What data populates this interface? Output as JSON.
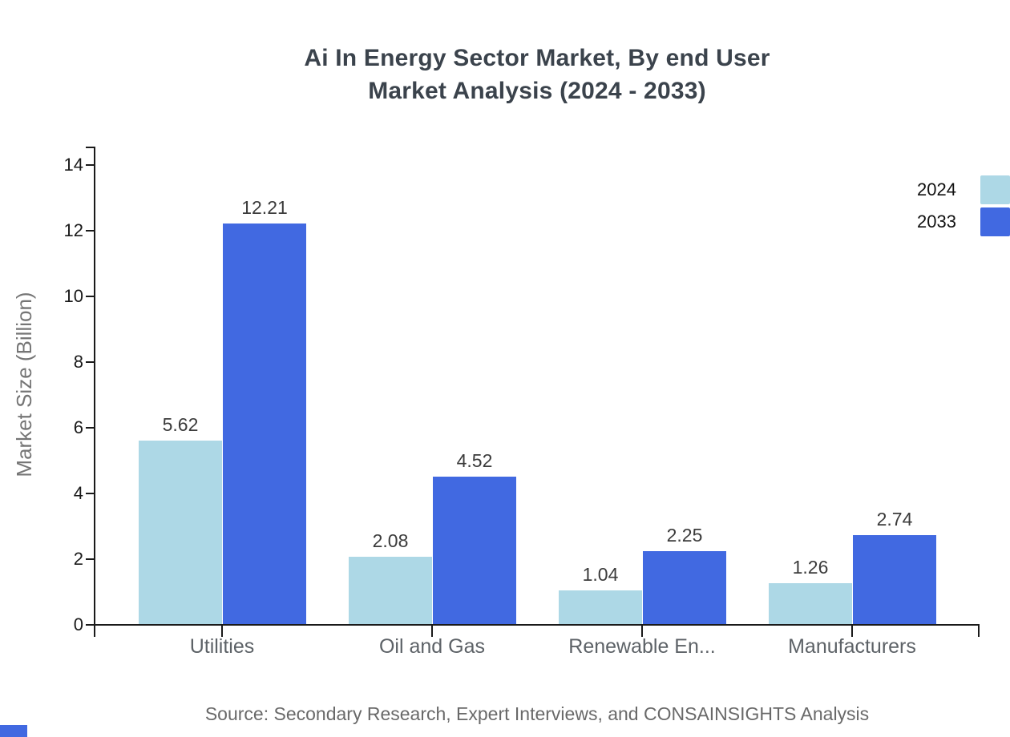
{
  "title": {
    "line1": "Ai In Energy Sector Market, By end User",
    "line2": "Market Analysis (2024 - 2033)"
  },
  "source": "Source: Secondary Research, Expert Interviews, and CONSAINSIGHTS Analysis",
  "colors": {
    "series_2024": "#ADD8E6",
    "series_2033": "#4169E1",
    "axis": "#1a1a1a",
    "title_text": "#3b434c",
    "muted_text": "#757575",
    "value_label_text": "#3b3b3b",
    "brand_corner": "#4169E1"
  },
  "chart_data": {
    "type": "bar",
    "title": "Ai In Energy Sector Market, By end User Market Analysis (2024 - 2033)",
    "categories": [
      "Utilities",
      "Oil and Gas",
      "Renewable En...",
      "Manufacturers"
    ],
    "series": [
      {
        "name": "2024",
        "color": "#ADD8E6",
        "values": [
          5.62,
          2.08,
          1.04,
          1.26
        ]
      },
      {
        "name": "2033",
        "color": "#4169E1",
        "values": [
          12.21,
          4.52,
          2.25,
          2.74
        ]
      }
    ],
    "xlabel": "",
    "ylabel": "Market Size (Billion)",
    "ylim": [
      0,
      14
    ],
    "ytick_step": 2,
    "ytick_labels": [
      "0",
      "2",
      "4",
      "6",
      "8",
      "10",
      "12",
      "14"
    ],
    "grid": false,
    "value_labels": true,
    "value_label_format": "0.00",
    "legend_position": "top-right"
  }
}
